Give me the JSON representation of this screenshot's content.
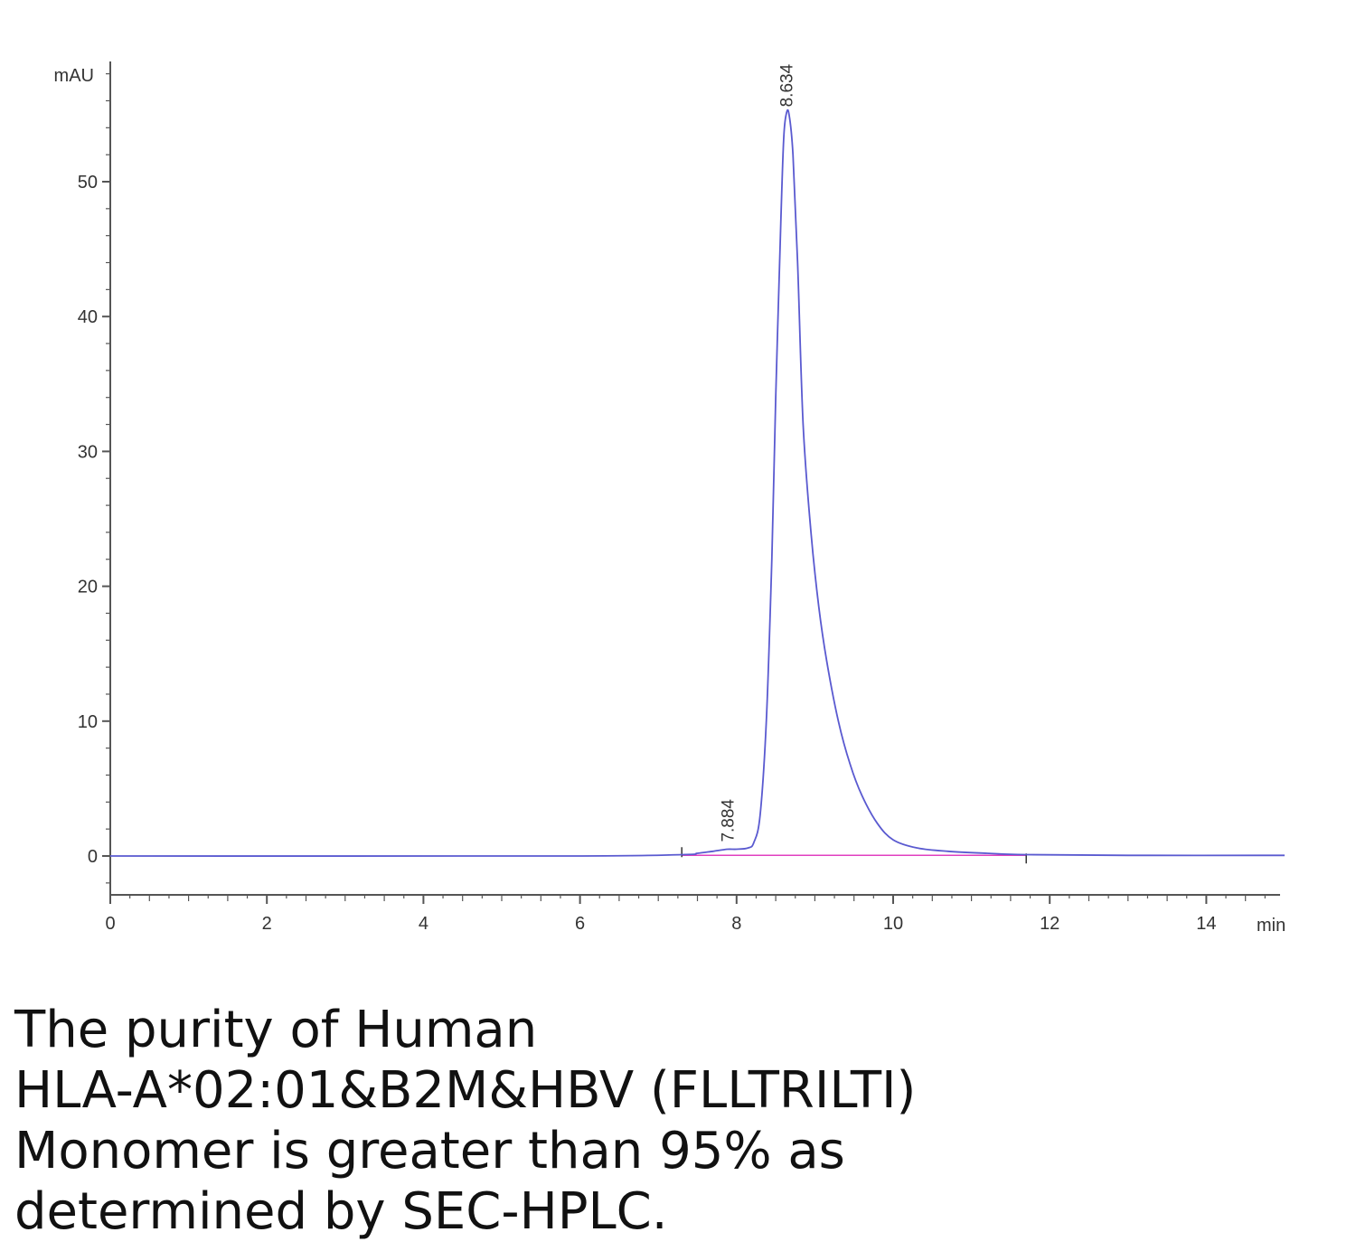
{
  "chart_data": {
    "type": "line",
    "ylabel": "mAU",
    "xlabel": "min",
    "xlim": [
      0,
      15
    ],
    "ylim": [
      -3,
      59
    ],
    "x_ticks": [
      "0",
      "2",
      "4",
      "6",
      "8",
      "10",
      "12",
      "14"
    ],
    "y_ticks": [
      "0",
      "10",
      "20",
      "30",
      "40",
      "50"
    ],
    "grid": false,
    "legend": "none",
    "series": [
      {
        "color": "#5a5ad0",
        "x": [
          0,
          5.8,
          7.3,
          7.5,
          7.7,
          7.884,
          8.0,
          8.15,
          8.22,
          8.3,
          8.38,
          8.45,
          8.5,
          8.56,
          8.6,
          8.634,
          8.67,
          8.72,
          8.78,
          8.85,
          8.95,
          9.05,
          9.15,
          9.3,
          9.45,
          9.6,
          9.8,
          10.0,
          10.3,
          10.7,
          11.2,
          11.7,
          13.0,
          15.0
        ],
        "y": [
          0,
          0,
          0.1,
          0.2,
          0.35,
          0.5,
          0.5,
          0.6,
          1.0,
          3.0,
          10.0,
          22.0,
          34.0,
          46.0,
          53.0,
          55.0,
          55.0,
          52.0,
          44.0,
          32.0,
          24.0,
          18.5,
          14.5,
          10.0,
          6.8,
          4.5,
          2.4,
          1.2,
          0.6,
          0.35,
          0.2,
          0.1,
          0.05,
          0.05
        ]
      }
    ],
    "baseline": {
      "color": "#e040c0",
      "x": [
        7.3,
        11.7
      ],
      "y": [
        0.05,
        0.05
      ]
    },
    "peak_labels": [
      {
        "x": 7.884,
        "y": 0.5,
        "text": "7.884"
      },
      {
        "x": 8.634,
        "y": 55.0,
        "text": "8.634"
      }
    ]
  },
  "caption": {
    "lines": [
      "The purity of Human",
      "HLA-A*02:01&B2M&HBV (FLLTRILTI)",
      "Monomer is greater than 95% as",
      "determined by SEC-HPLC."
    ]
  },
  "colors": {
    "axis": "#555555",
    "trace": "#5a5ad0",
    "baseline": "#e040c0"
  }
}
